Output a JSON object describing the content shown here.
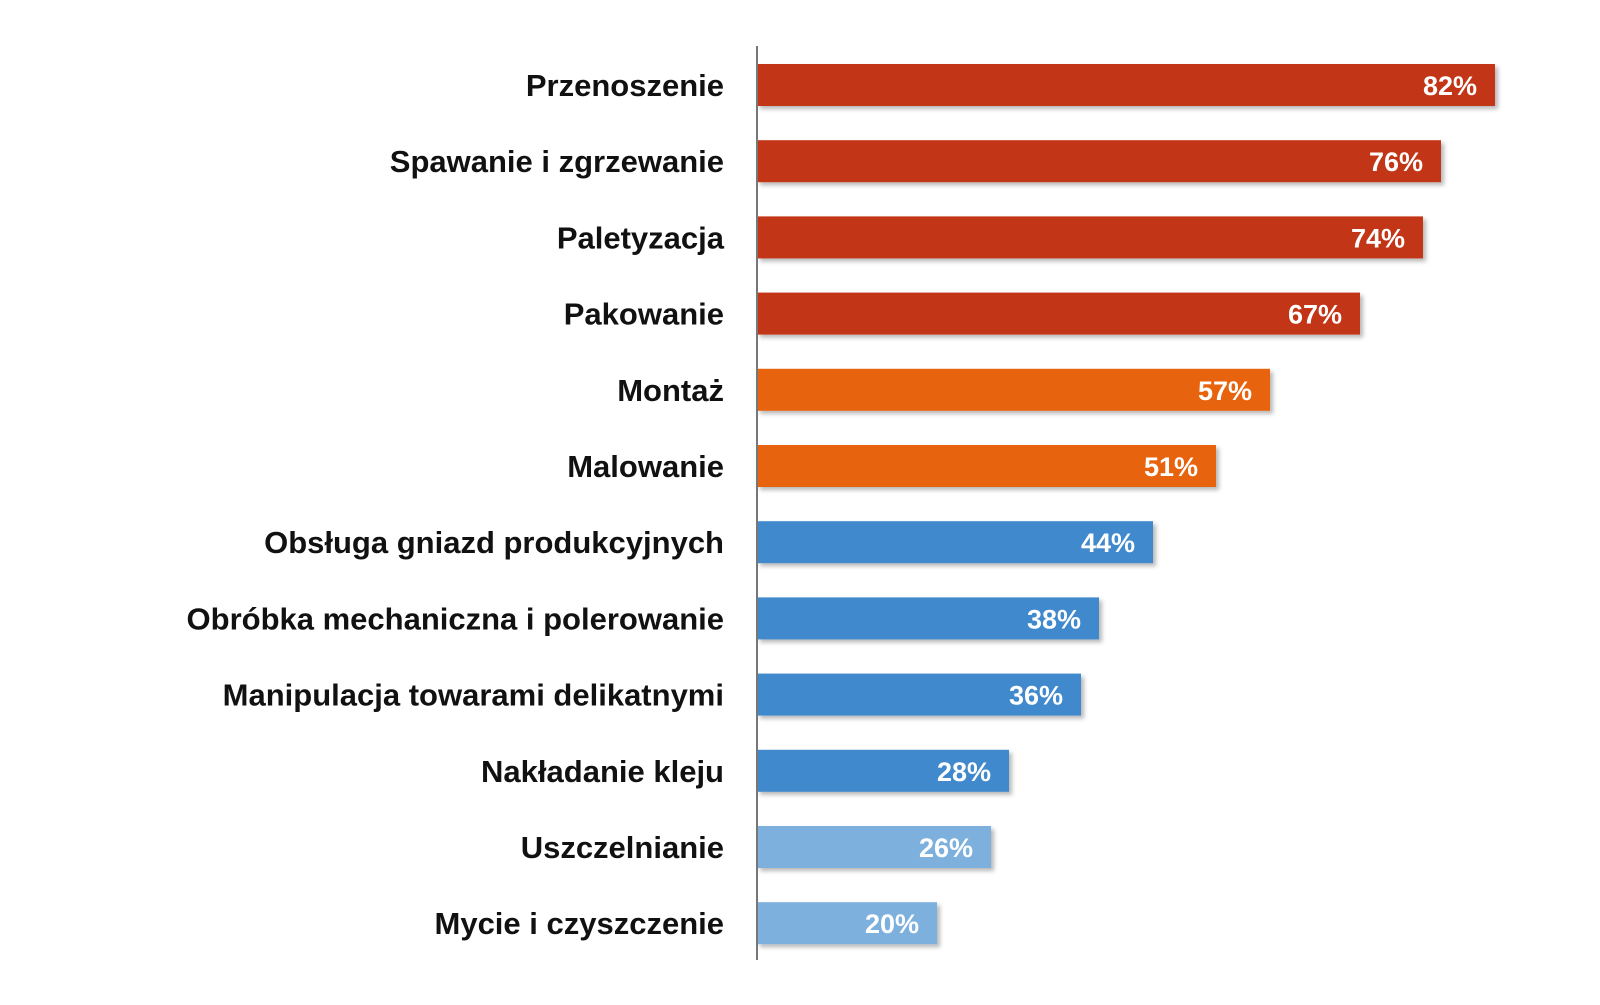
{
  "chart_data": {
    "type": "bar",
    "orientation": "horizontal",
    "categories": [
      "Przenoszenie",
      "Spawanie i zgrzewanie",
      "Paletyzacja",
      "Pakowanie",
      "Montaż",
      "Malowanie",
      "Obsługa gniazd produkcyjnych",
      "Obróbka mechaniczna i polerowanie",
      "Manipulacja towarami delikatnymi",
      "Nakładanie kleju",
      "Uszczelnianie",
      "Mycie i czyszczenie"
    ],
    "values": [
      82,
      76,
      74,
      67,
      57,
      51,
      44,
      38,
      36,
      28,
      26,
      20
    ],
    "value_labels": [
      "82%",
      "76%",
      "74%",
      "67%",
      "57%",
      "51%",
      "44%",
      "38%",
      "36%",
      "28%",
      "26%",
      "20%"
    ],
    "value_unit": "%",
    "bar_colors": [
      "#c23616",
      "#c23616",
      "#c23616",
      "#c23616",
      "#e8640f",
      "#e8640f",
      "#4189cc",
      "#4189cc",
      "#4189cc",
      "#4189cc",
      "#7eb0de",
      "#7eb0de"
    ],
    "title": "",
    "xlabel": "",
    "ylabel": "",
    "xlim": [
      0,
      100
    ],
    "grid": false,
    "legend": "none",
    "axis_line_color": "#777777",
    "data_labels_inside_bars": true
  }
}
